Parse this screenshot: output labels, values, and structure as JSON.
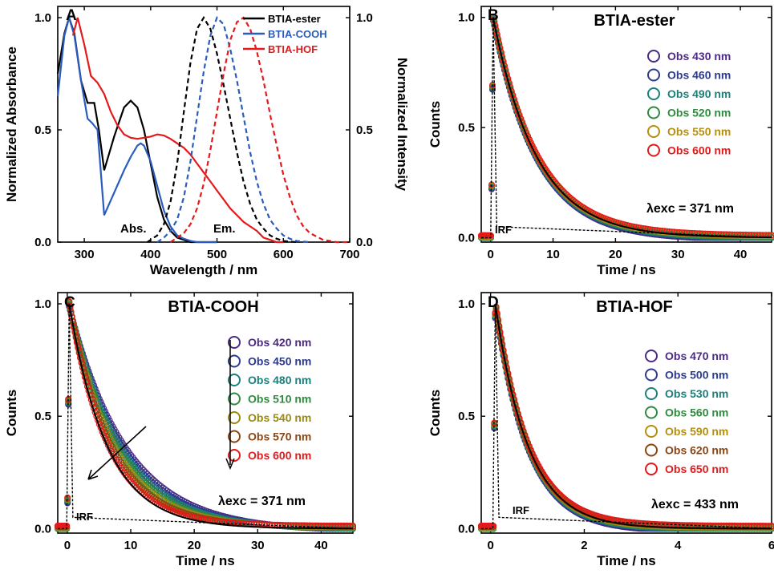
{
  "chart_data": [
    {
      "panel": "A",
      "type": "line",
      "xlabel": "Wavelength / nm",
      "ylabel_left": "Normalized Absorbance",
      "ylabel_right": "Normalized Intensity",
      "xlim": [
        260,
        700
      ],
      "ylim": [
        0,
        1.05
      ],
      "xticks": [
        "300",
        "400",
        "500",
        "600",
        "700"
      ],
      "yticks_left": [
        "0.0",
        "0.5",
        "1.0"
      ],
      "yticks_right": [
        "0.0",
        "0.5",
        "1.0"
      ],
      "annotations": [
        "Abs.",
        "Em."
      ],
      "legend_position": "top-right",
      "series": [
        {
          "name": "BTIA-ester",
          "kind": "absorbance",
          "color": "#000000",
          "x": [
            260,
            270,
            277,
            285,
            295,
            305,
            315,
            322,
            330,
            345,
            360,
            370,
            380,
            390,
            400,
            410,
            420,
            430,
            440,
            450,
            460,
            480,
            500
          ],
          "y": [
            0.75,
            0.93,
            1.0,
            0.93,
            0.72,
            0.62,
            0.62,
            0.5,
            0.32,
            0.47,
            0.6,
            0.63,
            0.6,
            0.5,
            0.35,
            0.2,
            0.1,
            0.05,
            0.02,
            0.01,
            0.0,
            0.0,
            0.0
          ]
        },
        {
          "name": "BTIA-COOH",
          "kind": "absorbance",
          "color": "#2a5cbf",
          "x": [
            260,
            270,
            277,
            285,
            295,
            305,
            312,
            320,
            330,
            345,
            360,
            370,
            380,
            385,
            390,
            400,
            410,
            420,
            430,
            440,
            450,
            460,
            470,
            480,
            490,
            500
          ],
          "y": [
            0.65,
            0.92,
            1.0,
            0.92,
            0.72,
            0.55,
            0.53,
            0.5,
            0.12,
            0.22,
            0.32,
            0.38,
            0.43,
            0.44,
            0.43,
            0.36,
            0.25,
            0.14,
            0.07,
            0.03,
            0.015,
            0.005,
            0.0,
            0.0,
            0.0,
            0.0
          ]
        },
        {
          "name": "BTIA-HOF",
          "kind": "absorbance",
          "color": "#e31a1c",
          "x": [
            283,
            290,
            300,
            310,
            320,
            330,
            340,
            350,
            360,
            370,
            380,
            390,
            400,
            410,
            420,
            430,
            440,
            450,
            460,
            470,
            480,
            490,
            500,
            510,
            520,
            530,
            540,
            550,
            560,
            570,
            580,
            590,
            600
          ],
          "y": [
            0.92,
            1.0,
            0.88,
            0.74,
            0.71,
            0.66,
            0.58,
            0.52,
            0.48,
            0.465,
            0.46,
            0.465,
            0.47,
            0.48,
            0.475,
            0.46,
            0.44,
            0.42,
            0.39,
            0.35,
            0.31,
            0.27,
            0.23,
            0.19,
            0.15,
            0.12,
            0.09,
            0.07,
            0.05,
            0.02,
            0.01,
            0.0,
            0.0
          ]
        },
        {
          "name": "BTIA-ester",
          "kind": "emission",
          "color": "#000000",
          "x": [
            395,
            410,
            420,
            430,
            440,
            450,
            460,
            470,
            480,
            490,
            500,
            510,
            520,
            530,
            540,
            550,
            560,
            570,
            580,
            590,
            600,
            620
          ],
          "y": [
            0.0,
            0.03,
            0.08,
            0.18,
            0.35,
            0.58,
            0.8,
            0.95,
            1.0,
            0.95,
            0.84,
            0.7,
            0.55,
            0.4,
            0.27,
            0.17,
            0.1,
            0.06,
            0.03,
            0.015,
            0.005,
            0.0
          ]
        },
        {
          "name": "BTIA-COOH",
          "kind": "emission",
          "color": "#2a5cbf",
          "x": [
            410,
            420,
            430,
            440,
            450,
            460,
            470,
            480,
            490,
            500,
            510,
            520,
            530,
            540,
            550,
            560,
            570,
            580,
            590,
            600,
            610,
            620,
            640
          ],
          "y": [
            0.0,
            0.02,
            0.05,
            0.1,
            0.2,
            0.36,
            0.56,
            0.76,
            0.92,
            1.0,
            0.97,
            0.86,
            0.72,
            0.56,
            0.4,
            0.27,
            0.17,
            0.1,
            0.06,
            0.03,
            0.015,
            0.005,
            0.0
          ]
        },
        {
          "name": "BTIA-HOF",
          "kind": "emission",
          "color": "#e31a1c",
          "x": [
            430,
            440,
            450,
            460,
            470,
            480,
            490,
            500,
            510,
            520,
            530,
            540,
            550,
            560,
            570,
            580,
            590,
            600,
            610,
            620,
            630,
            640,
            660,
            680,
            700
          ],
          "y": [
            0.0,
            0.02,
            0.04,
            0.08,
            0.15,
            0.26,
            0.41,
            0.58,
            0.75,
            0.9,
            0.98,
            1.0,
            0.95,
            0.85,
            0.72,
            0.57,
            0.43,
            0.3,
            0.2,
            0.12,
            0.07,
            0.04,
            0.01,
            0.0,
            0.0
          ]
        }
      ]
    },
    {
      "panel": "B",
      "type": "scatter",
      "title": "BTIA-ester",
      "xlabel": "Time / ns",
      "ylabel": "Counts",
      "xlim": [
        -1.5,
        45
      ],
      "ylim": [
        -0.02,
        1.05
      ],
      "xticks": [
        "0",
        "10",
        "20",
        "30",
        "40"
      ],
      "yticks": [
        "0.0",
        "0.5",
        "1.0"
      ],
      "excitation": "λexc = 371 nm",
      "irf_label": "IRF",
      "legend_position": "right",
      "series": [
        {
          "name": "Obs 430 nm",
          "color": "#4b2a83",
          "peak_time": 0.4,
          "decay_time_ns": 7.0
        },
        {
          "name": "Obs 460 nm",
          "color": "#2b3a8f",
          "peak_time": 0.4,
          "decay_time_ns": 7.0
        },
        {
          "name": "Obs 490 nm",
          "color": "#1b7f7a",
          "peak_time": 0.4,
          "decay_time_ns": 7.0
        },
        {
          "name": "Obs 520 nm",
          "color": "#2e8b3e",
          "peak_time": 0.4,
          "decay_time_ns": 7.0
        },
        {
          "name": "Obs 550 nm",
          "color": "#b38f10",
          "peak_time": 0.4,
          "decay_time_ns": 7.0
        },
        {
          "name": "Obs 600 nm",
          "color": "#e31a1c",
          "peak_time": 0.4,
          "decay_time_ns": 7.0
        }
      ]
    },
    {
      "panel": "C",
      "type": "scatter",
      "title": "BTIA-COOH",
      "xlabel": "Time / ns",
      "ylabel": "Counts",
      "xlim": [
        -1.5,
        45
      ],
      "ylim": [
        -0.02,
        1.05
      ],
      "xticks": [
        "0",
        "10",
        "20",
        "30",
        "40"
      ],
      "yticks": [
        "0.0",
        "0.5",
        "1.0"
      ],
      "excitation": "λexc = 371 nm",
      "irf_label": "IRF",
      "legend_position": "right",
      "series": [
        {
          "name": "Obs 420 nm",
          "color": "#4b2a83",
          "peak_time": 0.3,
          "decay_time_ns": 9.0
        },
        {
          "name": "Obs 450 nm",
          "color": "#2b3a8f",
          "peak_time": 0.3,
          "decay_time_ns": 8.5
        },
        {
          "name": "Obs 480 nm",
          "color": "#1b7f7a",
          "peak_time": 0.3,
          "decay_time_ns": 8.0
        },
        {
          "name": "Obs 510 nm",
          "color": "#2e8b3e",
          "peak_time": 0.3,
          "decay_time_ns": 7.5
        },
        {
          "name": "Obs 540 nm",
          "color": "#9a8a12",
          "peak_time": 0.3,
          "decay_time_ns": 7.0
        },
        {
          "name": "Obs 570 nm",
          "color": "#8b4513",
          "peak_time": 0.3,
          "decay_time_ns": 6.5
        },
        {
          "name": "Obs 600 nm",
          "color": "#e31a1c",
          "peak_time": 0.3,
          "decay_time_ns": 6.0
        }
      ]
    },
    {
      "panel": "D",
      "type": "scatter",
      "title": "BTIA-HOF",
      "xlabel": "Time / ns",
      "ylabel": "Counts",
      "xlim": [
        -0.2,
        6
      ],
      "ylim": [
        -0.02,
        1.05
      ],
      "xticks": [
        "0",
        "2",
        "4",
        "6"
      ],
      "yticks": [
        "0.0",
        "0.5",
        "1.0"
      ],
      "excitation": "λexc = 433 nm",
      "irf_label": "IRF",
      "legend_position": "right",
      "series": [
        {
          "name": "Obs 470 nm",
          "color": "#4b2a83",
          "peak_time": 0.1,
          "decay_time_ns": 0.7
        },
        {
          "name": "Obs 500 nm",
          "color": "#2b3a8f",
          "peak_time": 0.1,
          "decay_time_ns": 0.7
        },
        {
          "name": "Obs 530 nm",
          "color": "#1b7f7a",
          "peak_time": 0.1,
          "decay_time_ns": 0.7
        },
        {
          "name": "Obs 560 nm",
          "color": "#2e8b3e",
          "peak_time": 0.1,
          "decay_time_ns": 0.7
        },
        {
          "name": "Obs 590 nm",
          "color": "#b38f10",
          "peak_time": 0.1,
          "decay_time_ns": 0.7
        },
        {
          "name": "Obs 620 nm",
          "color": "#8b4513",
          "peak_time": 0.1,
          "decay_time_ns": 0.7
        },
        {
          "name": "Obs 650 nm",
          "color": "#e31a1c",
          "peak_time": 0.1,
          "decay_time_ns": 0.7
        }
      ]
    }
  ]
}
